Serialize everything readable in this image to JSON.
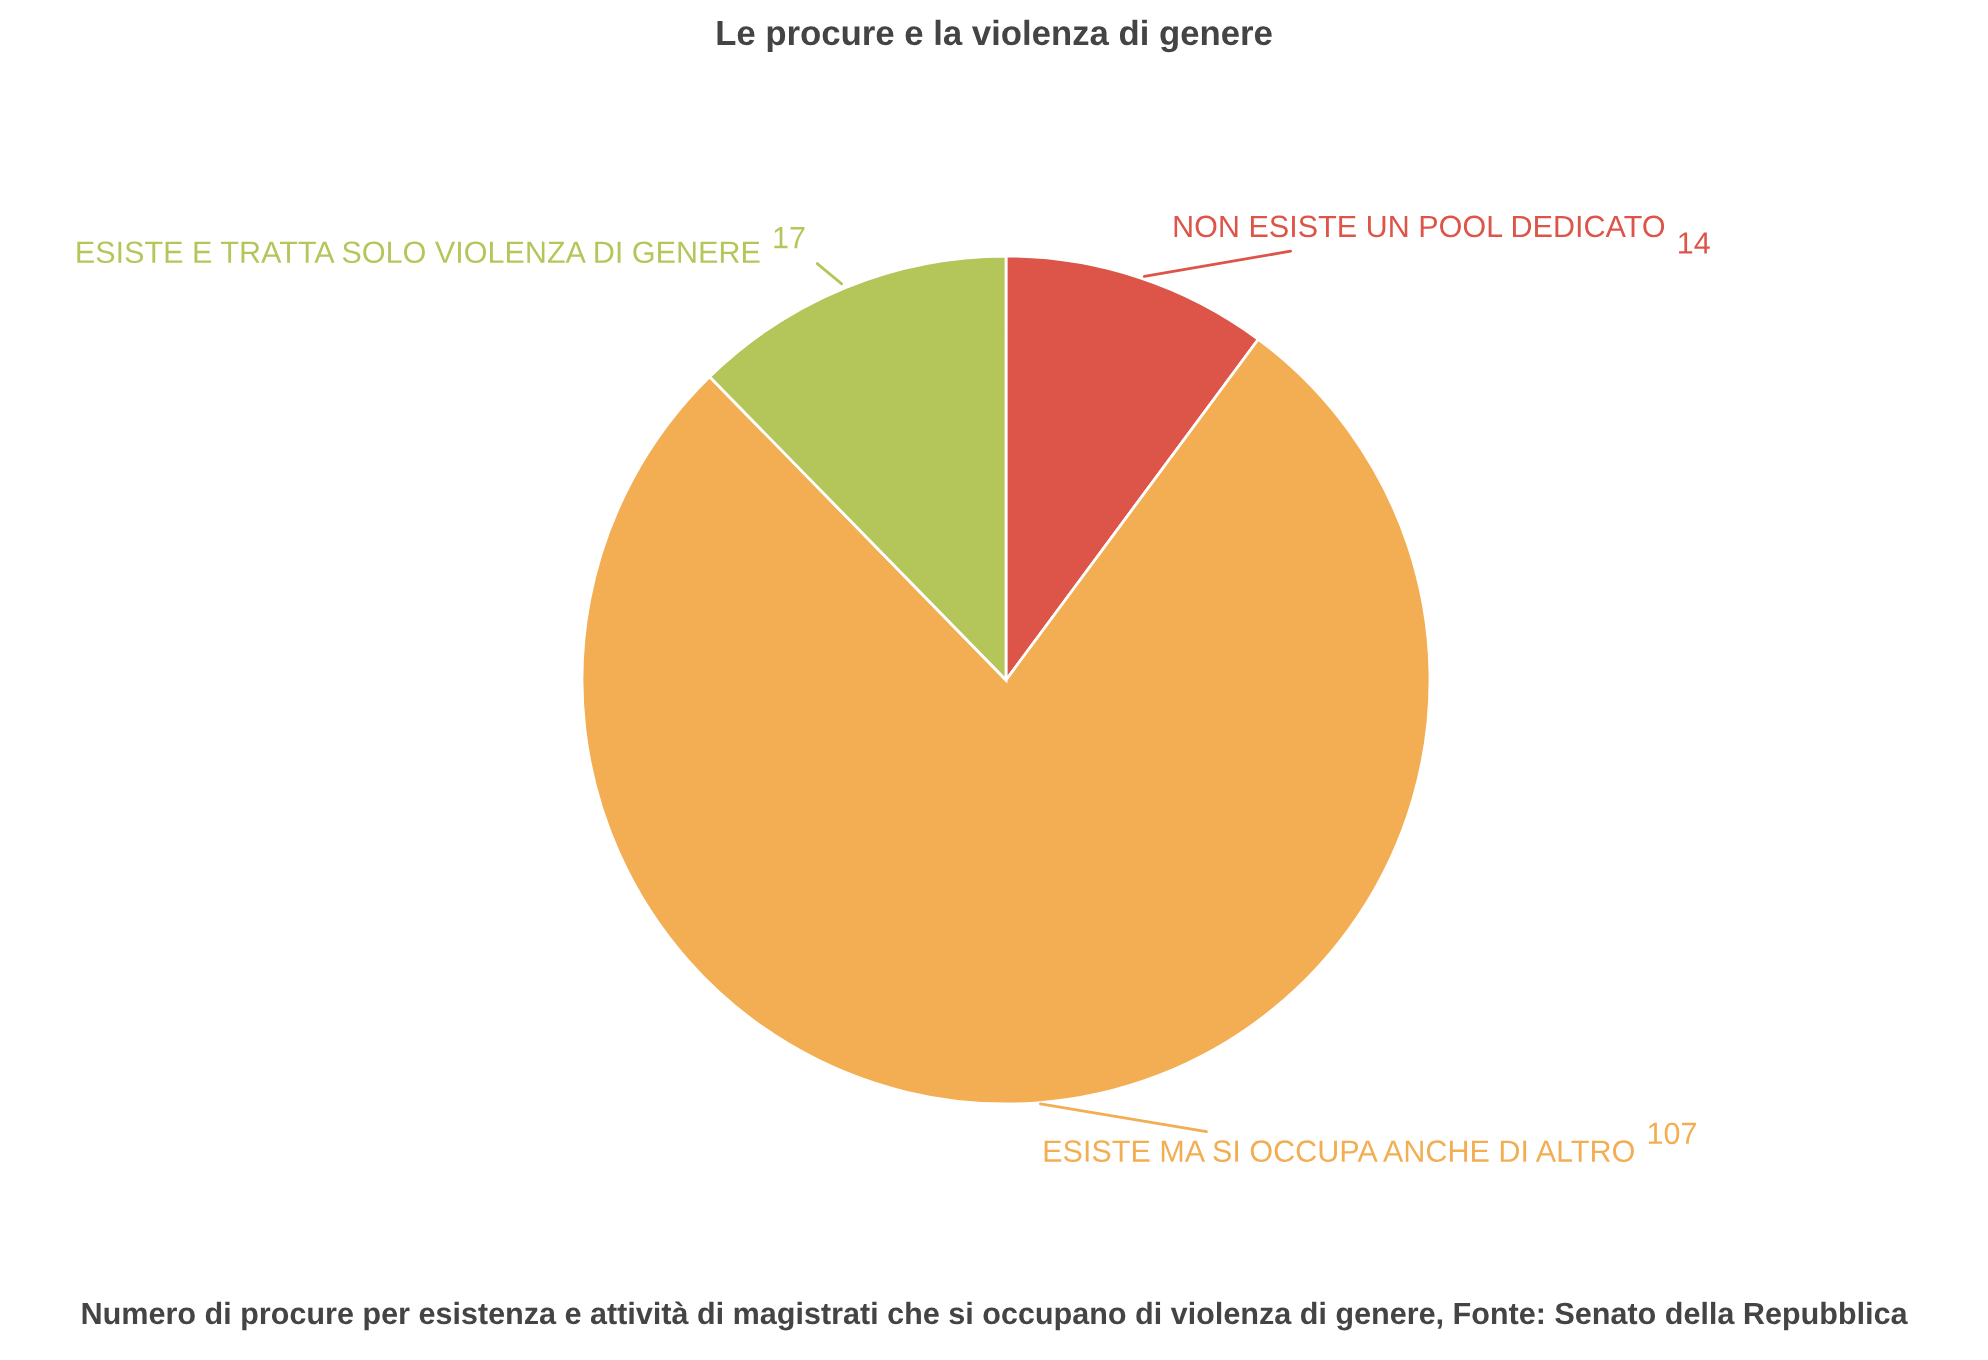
{
  "chart_data": {
    "type": "pie",
    "title": "Le procure e la violenza di genere",
    "categories": [
      "NON ESISTE UN POOL DEDICATO",
      "ESISTE MA SI OCCUPA ANCHE DI ALTRO",
      "ESISTE E TRATTA SOLO VIOLENZA DI GENERE"
    ],
    "values": [
      14,
      107,
      17
    ],
    "colors": [
      "#dd5448",
      "#f3ad52",
      "#b4c65a"
    ],
    "data_labels": true,
    "annotations": [
      "Numero di procure per esistenza e attività di magistrati che si occupano di violenza di genere, Fonte: Senato della Repubblica"
    ]
  }
}
